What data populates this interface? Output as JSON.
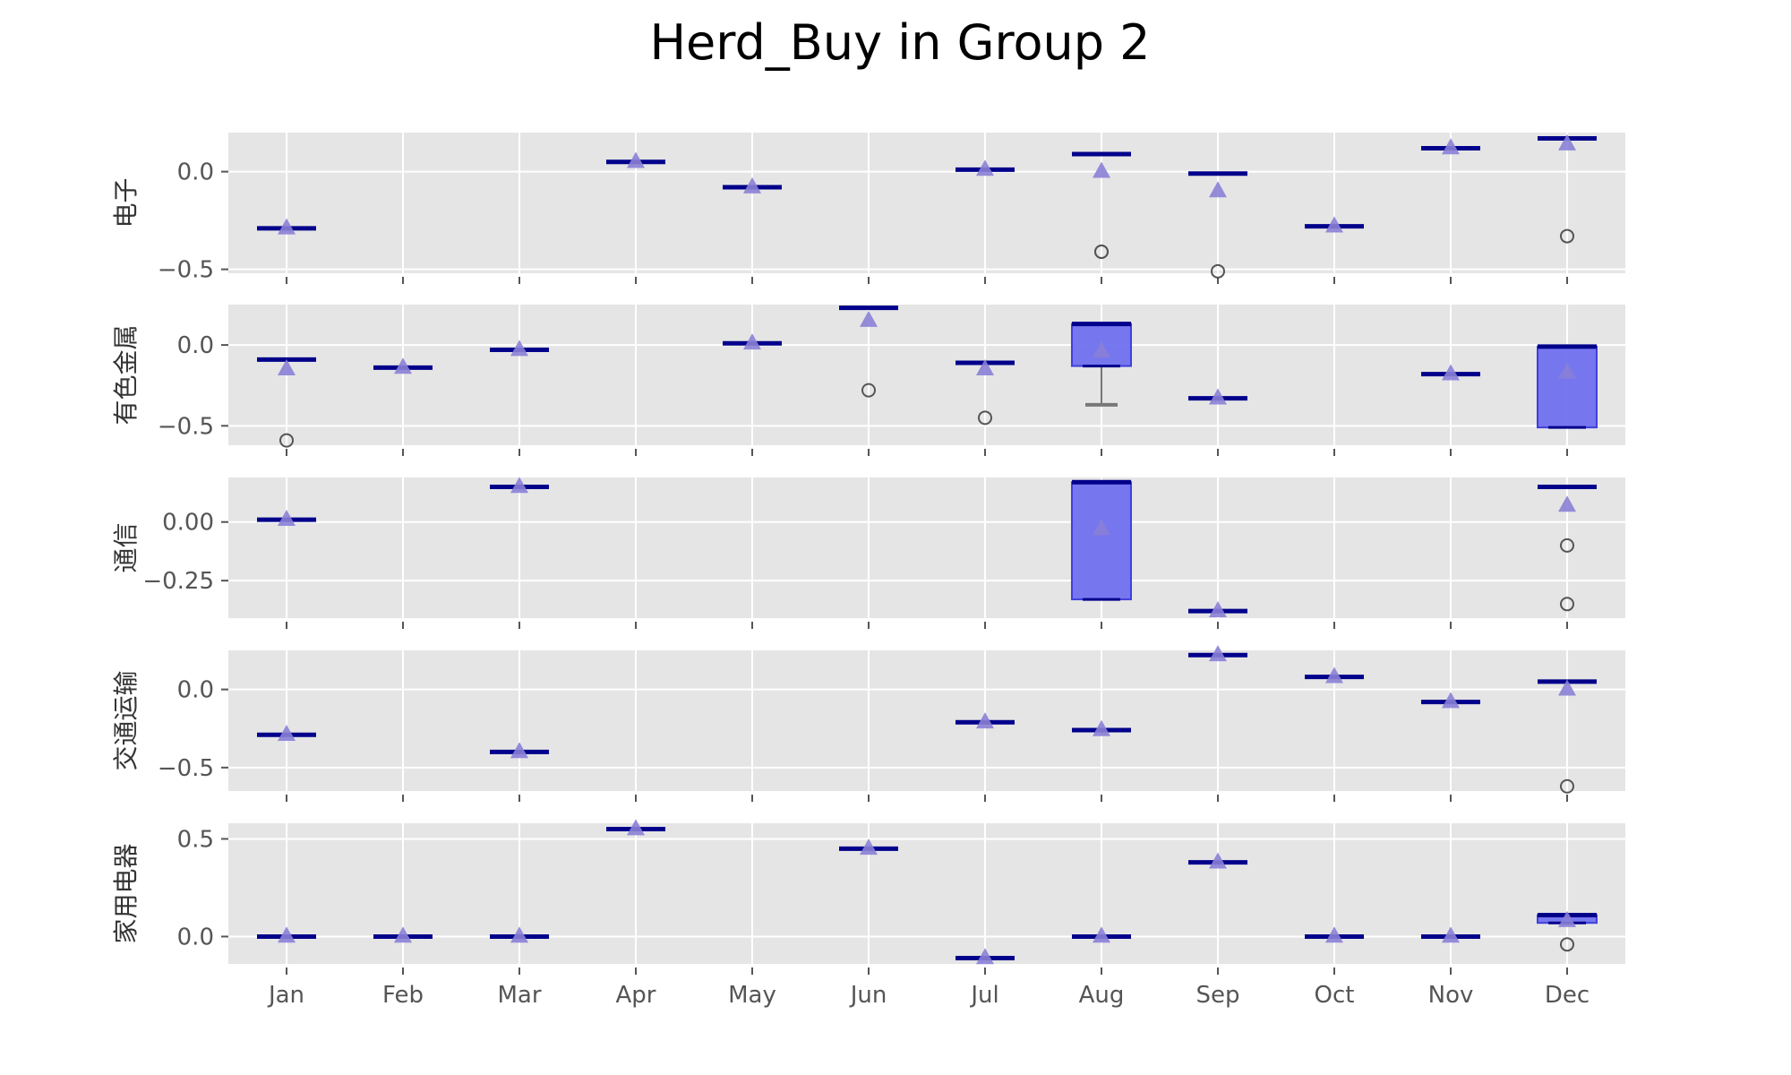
{
  "chart_data": {
    "type": "box",
    "title": "Herd_Buy in Group 2",
    "categories": [
      "Jan",
      "Feb",
      "Mar",
      "Apr",
      "May",
      "Jun",
      "Jul",
      "Aug",
      "Sep",
      "Oct",
      "Nov",
      "Dec"
    ],
    "colors": {
      "panel_bg": "#e5e5e5",
      "grid": "#ffffff",
      "box_fill": "#7070ee",
      "box_edge": "#4040dd",
      "median": "#00008b",
      "mean_marker": "#8a7fd6",
      "flier": "#555555",
      "whisker": "#777777"
    },
    "panels": [
      {
        "label": "电子",
        "ylim": [
          -0.52,
          0.2
        ],
        "yticks": [
          0.0,
          -0.5
        ],
        "ytick_labels": [
          "0.0",
          "−0.5"
        ],
        "boxes": [
          {
            "month": "Jan",
            "median": -0.29,
            "mean": -0.29
          },
          {
            "month": "Apr",
            "median": 0.05,
            "mean": 0.05
          },
          {
            "month": "May",
            "median": -0.08,
            "mean": -0.08
          },
          {
            "month": "Jul",
            "median": 0.01,
            "mean": 0.01
          },
          {
            "month": "Aug",
            "median": 0.09,
            "mean": 0.0,
            "fliers": [
              -0.41,
              -0.41
            ]
          },
          {
            "month": "Sep",
            "median": -0.01,
            "mean": -0.1,
            "fliers": [
              -0.51
            ]
          },
          {
            "month": "Oct",
            "median": -0.28,
            "mean": -0.28
          },
          {
            "month": "Nov",
            "median": 0.12,
            "mean": 0.12
          },
          {
            "month": "Dec",
            "median": 0.17,
            "mean": 0.14,
            "fliers": [
              -0.33
            ]
          }
        ]
      },
      {
        "label": "有色金属",
        "ylim": [
          -0.62,
          0.25
        ],
        "yticks": [
          0.0,
          -0.5
        ],
        "ytick_labels": [
          "0.0",
          "−0.5"
        ],
        "boxes": [
          {
            "month": "Jan",
            "median": -0.09,
            "mean": -0.15,
            "fliers": [
              -0.59
            ]
          },
          {
            "month": "Feb",
            "median": -0.14,
            "mean": -0.14
          },
          {
            "month": "Mar",
            "median": -0.03,
            "mean": -0.03
          },
          {
            "month": "May",
            "median": 0.01,
            "mean": 0.01
          },
          {
            "month": "Jun",
            "median": 0.23,
            "mean": 0.15,
            "fliers": [
              -0.28
            ]
          },
          {
            "month": "Jul",
            "median": -0.11,
            "mean": -0.15,
            "fliers": [
              -0.45
            ]
          },
          {
            "month": "Aug",
            "median": 0.13,
            "mean": -0.04,
            "q1": -0.13,
            "q3": 0.13,
            "whisker_low": -0.37,
            "whisker_high": 0.13
          },
          {
            "month": "Sep",
            "median": -0.33,
            "mean": -0.33
          },
          {
            "month": "Nov",
            "median": -0.18,
            "mean": -0.18
          },
          {
            "month": "Dec",
            "median": -0.01,
            "mean": -0.17,
            "q1": -0.51,
            "q3": -0.01,
            "whisker_low": -0.51,
            "whisker_high": -0.01
          }
        ]
      },
      {
        "label": "通信",
        "ylim": [
          -0.41,
          0.19
        ],
        "yticks": [
          0.0,
          -0.25
        ],
        "ytick_labels": [
          "0.00",
          "−0.25"
        ],
        "boxes": [
          {
            "month": "Jan",
            "median": 0.01,
            "mean": 0.01
          },
          {
            "month": "Mar",
            "median": 0.15,
            "mean": 0.15
          },
          {
            "month": "Aug",
            "median": 0.17,
            "mean": -0.03,
            "q1": -0.33,
            "q3": 0.17,
            "whisker_low": -0.33,
            "whisker_high": 0.17
          },
          {
            "month": "Sep",
            "median": -0.38,
            "mean": -0.38
          },
          {
            "month": "Dec",
            "median": 0.15,
            "mean": 0.07,
            "fliers": [
              -0.1,
              -0.35
            ]
          }
        ]
      },
      {
        "label": "交通运输",
        "ylim": [
          -0.65,
          0.25
        ],
        "yticks": [
          0.0,
          -0.5
        ],
        "ytick_labels": [
          "0.0",
          "−0.5"
        ],
        "boxes": [
          {
            "month": "Jan",
            "median": -0.29,
            "mean": -0.29
          },
          {
            "month": "Mar",
            "median": -0.4,
            "mean": -0.4
          },
          {
            "month": "Jul",
            "median": -0.21,
            "mean": -0.21
          },
          {
            "month": "Aug",
            "median": -0.26,
            "mean": -0.26
          },
          {
            "month": "Sep",
            "median": 0.22,
            "mean": 0.22
          },
          {
            "month": "Oct",
            "median": 0.08,
            "mean": 0.08
          },
          {
            "month": "Nov",
            "median": -0.08,
            "mean": -0.08
          },
          {
            "month": "Dec",
            "median": 0.05,
            "mean": 0.0,
            "fliers": [
              -0.62
            ]
          }
        ]
      },
      {
        "label": "家用电器",
        "ylim": [
          -0.14,
          0.58
        ],
        "yticks": [
          0.5,
          0.0
        ],
        "ytick_labels": [
          "0.5",
          "0.0"
        ],
        "boxes": [
          {
            "month": "Jan",
            "median": 0.0,
            "mean": 0.0
          },
          {
            "month": "Feb",
            "median": 0.0,
            "mean": 0.0
          },
          {
            "month": "Mar",
            "median": 0.0,
            "mean": 0.0
          },
          {
            "month": "Apr",
            "median": 0.55,
            "mean": 0.55
          },
          {
            "month": "Jun",
            "median": 0.45,
            "mean": 0.45
          },
          {
            "month": "Jul",
            "median": -0.11,
            "mean": -0.11
          },
          {
            "month": "Aug",
            "median": 0.0,
            "mean": 0.0
          },
          {
            "month": "Sep",
            "median": 0.38,
            "mean": 0.38
          },
          {
            "month": "Oct",
            "median": 0.0,
            "mean": 0.0
          },
          {
            "month": "Nov",
            "median": 0.0,
            "mean": 0.0
          },
          {
            "month": "Dec",
            "median": 0.11,
            "mean": 0.08,
            "q1": 0.07,
            "q3": 0.11,
            "whisker_low": 0.07,
            "whisker_high": 0.11,
            "fliers": [
              -0.04
            ]
          }
        ]
      }
    ]
  }
}
